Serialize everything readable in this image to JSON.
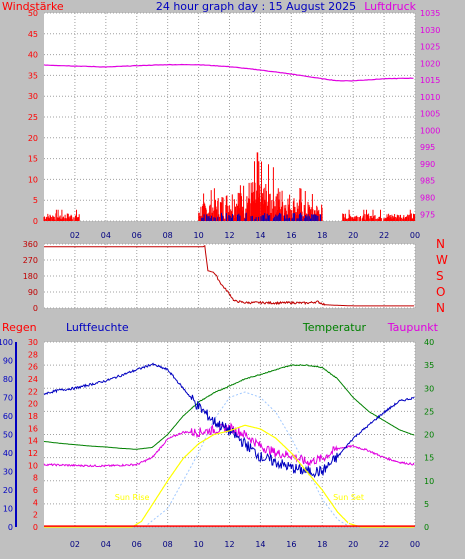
{
  "header": {
    "left_label": "Windstärke",
    "title": "24 hour graph day : 15 August 2025",
    "right_label": "Luftdruck"
  },
  "colors": {
    "background": "#c0c0c0",
    "plot_bg": "#ffffff",
    "grid": "#a0a0a0",
    "wind": "#ff0000",
    "gust": "#0000c0",
    "pressure": "#e000e0",
    "direction": "#c00000",
    "humidity": "#0000c0",
    "temperature": "#008000",
    "dewpoint": "#e000e0",
    "solar": "#ffff00",
    "uv": "#a0c8ff",
    "rain": "#ff0000",
    "sun_marker": "#ffff00"
  },
  "bottom_labels": {
    "rain": "Regen",
    "humidity": "Luftfeuchte",
    "temperature": "Temperatur",
    "dewpoint": "Taupunkt",
    "sunrise": "Sun Rise",
    "sunset": "Sun Set"
  },
  "direction_letters": [
    "N",
    "W",
    "S",
    "O",
    "N"
  ],
  "x_ticks": [
    "02",
    "04",
    "06",
    "08",
    "10",
    "12",
    "14",
    "16",
    "18",
    "20",
    "22",
    "00"
  ],
  "chart_data": [
    {
      "type": "line",
      "name": "wind-pressure",
      "title": "24 hour graph day : 15 August 2025",
      "y_left": {
        "label": "Windstärke",
        "range": [
          0,
          50
        ],
        "ticks": [
          0,
          5,
          10,
          15,
          20,
          25,
          30,
          35,
          40,
          45,
          50
        ]
      },
      "y_right": {
        "label": "Luftdruck",
        "range": [
          973,
          1035
        ],
        "ticks": [
          975,
          980,
          985,
          990,
          995,
          1000,
          1005,
          1010,
          1015,
          1020,
          1025,
          1030,
          1035
        ]
      },
      "x_range": [
        0,
        24
      ],
      "series": [
        {
          "name": "Luftdruck",
          "axis": "right",
          "points": [
            [
              0,
              1019.5
            ],
            [
              2,
              1019.2
            ],
            [
              4,
              1018.9
            ],
            [
              6,
              1019.3
            ],
            [
              8,
              1019.6
            ],
            [
              10,
              1019.6
            ],
            [
              12,
              1019.0
            ],
            [
              14,
              1018.0
            ],
            [
              16,
              1016.8
            ],
            [
              18,
              1015.4
            ],
            [
              19,
              1014.8
            ],
            [
              20,
              1014.8
            ],
            [
              22,
              1015.4
            ],
            [
              24,
              1015.6
            ]
          ]
        },
        {
          "name": "Windstärke",
          "axis": "left",
          "active_periods": [
            [
              0.0,
              2.3
            ],
            [
              10.0,
              18.0
            ],
            [
              19.3,
              24.0
            ]
          ],
          "peak": [
            13.8,
            16.5
          ]
        }
      ]
    },
    {
      "type": "line",
      "name": "wind-direction",
      "y_range": [
        0,
        360
      ],
      "y_ticks": [
        0,
        90,
        180,
        270,
        360
      ],
      "x_range": [
        0,
        24
      ],
      "series": [
        {
          "name": "Windrichtung",
          "points": [
            [
              0,
              345
            ],
            [
              10.3,
              345
            ],
            [
              10.4,
              350
            ],
            [
              10.6,
              210
            ],
            [
              11.0,
              200
            ],
            [
              11.5,
              130
            ],
            [
              12.0,
              80
            ],
            [
              12.3,
              40
            ],
            [
              13,
              30
            ],
            [
              14,
              30
            ],
            [
              15,
              28
            ],
            [
              16,
              30
            ],
            [
              17,
              28
            ],
            [
              17.7,
              35
            ],
            [
              18.2,
              18
            ],
            [
              19,
              15
            ],
            [
              20,
              12
            ],
            [
              24,
              12
            ]
          ]
        }
      ]
    },
    {
      "type": "line",
      "name": "rain-humidity-temperature",
      "y_rain": {
        "label": "Regen",
        "range": [
          0,
          100
        ],
        "ticks": [
          0,
          10,
          20,
          30,
          40,
          50,
          60,
          70,
          80,
          90,
          100
        ]
      },
      "y_humidity": {
        "label": "Luftfeuchte",
        "range": [
          0,
          30
        ],
        "ticks": [
          0,
          2,
          4,
          6,
          8,
          10,
          12,
          14,
          16,
          18,
          20,
          22,
          24,
          26,
          28,
          30
        ]
      },
      "y_temperature": {
        "label": "Temperatur",
        "range": [
          0,
          40
        ],
        "ticks": [
          0,
          5,
          10,
          15,
          20,
          25,
          30,
          35,
          40
        ]
      },
      "x_range": [
        0,
        24
      ],
      "sunrise_hour": 5.7,
      "sunset_hour": 19.7,
      "series": [
        {
          "name": "Luftfeuchte",
          "axis": "rain",
          "points": [
            [
              0,
              72
            ],
            [
              1,
              74
            ],
            [
              2,
              75
            ],
            [
              3,
              77
            ],
            [
              4,
              79
            ],
            [
              5,
              82
            ],
            [
              6,
              85
            ],
            [
              7,
              88
            ],
            [
              8,
              85
            ],
            [
              9,
              75
            ],
            [
              10,
              65
            ],
            [
              11,
              57
            ],
            [
              12,
              52
            ],
            [
              13,
              45
            ],
            [
              14,
              38
            ],
            [
              15,
              35
            ],
            [
              16,
              32
            ],
            [
              17,
              30
            ],
            [
              18,
              30
            ],
            [
              19,
              38
            ],
            [
              20,
              48
            ],
            [
              21,
              55
            ],
            [
              22,
              62
            ],
            [
              23,
              68
            ],
            [
              24,
              70
            ]
          ]
        },
        {
          "name": "Temperatur",
          "axis": "temperature",
          "points": [
            [
              0,
              18.5
            ],
            [
              1,
              18.1
            ],
            [
              2,
              17.8
            ],
            [
              3,
              17.5
            ],
            [
              4,
              17.3
            ],
            [
              5,
              17.0
            ],
            [
              6,
              16.8
            ],
            [
              7,
              17.2
            ],
            [
              8,
              20
            ],
            [
              9,
              24
            ],
            [
              10,
              27
            ],
            [
              11,
              29
            ],
            [
              12,
              30.5
            ],
            [
              13,
              32
            ],
            [
              14,
              33
            ],
            [
              15,
              34
            ],
            [
              16,
              35
            ],
            [
              17,
              35
            ],
            [
              18,
              34.5
            ],
            [
              19,
              32
            ],
            [
              20,
              28
            ],
            [
              21,
              25
            ],
            [
              22,
              23
            ],
            [
              23,
              21
            ],
            [
              24,
              19.8
            ]
          ]
        },
        {
          "name": "Taupunkt",
          "axis": "temperature",
          "points": [
            [
              0,
              13.5
            ],
            [
              2,
              13.3
            ],
            [
              4,
              13.2
            ],
            [
              6,
              13.5
            ],
            [
              7,
              15
            ],
            [
              8,
              19
            ],
            [
              9,
              20.5
            ],
            [
              10,
              20.5
            ],
            [
              11,
              21
            ],
            [
              12,
              21.5
            ],
            [
              13,
              20
            ],
            [
              14,
              17.5
            ],
            [
              15,
              16
            ],
            [
              16,
              15.5
            ],
            [
              17,
              14
            ],
            [
              18,
              14.8
            ],
            [
              19,
              17
            ],
            [
              20,
              17.5
            ],
            [
              21,
              16.5
            ],
            [
              22,
              15
            ],
            [
              23,
              14
            ],
            [
              24,
              13.5
            ]
          ]
        },
        {
          "name": "Solar",
          "axis": "rain",
          "points": [
            [
              0,
              0
            ],
            [
              5.7,
              0
            ],
            [
              6.3,
              3
            ],
            [
              7,
              12
            ],
            [
              8,
              25
            ],
            [
              9,
              37
            ],
            [
              10,
              45
            ],
            [
              11,
              50
            ],
            [
              12,
              52
            ],
            [
              13,
              55
            ],
            [
              14,
              53
            ],
            [
              15,
              48
            ],
            [
              16,
              40
            ],
            [
              17,
              30
            ],
            [
              18,
              20
            ],
            [
              19,
              8
            ],
            [
              19.7,
              2
            ],
            [
              20.5,
              0
            ],
            [
              24,
              0
            ]
          ]
        },
        {
          "name": "UV",
          "axis": "rain",
          "points": [
            [
              0,
              0
            ],
            [
              6.5,
              0
            ],
            [
              8,
              10
            ],
            [
              9,
              25
            ],
            [
              10,
              40
            ],
            [
              11,
              58
            ],
            [
              12,
              70
            ],
            [
              13,
              73
            ],
            [
              14,
              70
            ],
            [
              15,
              62
            ],
            [
              16,
              48
            ],
            [
              17,
              32
            ],
            [
              18,
              15
            ],
            [
              19,
              4
            ],
            [
              19.8,
              0
            ],
            [
              24,
              0
            ]
          ]
        },
        {
          "name": "Regen",
          "axis": "rain",
          "points": [
            [
              0,
              0.5
            ],
            [
              24,
              0.5
            ]
          ]
        }
      ]
    }
  ]
}
